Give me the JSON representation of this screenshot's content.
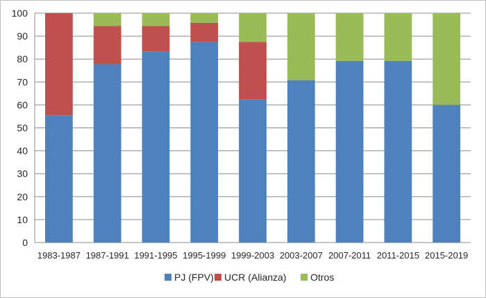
{
  "chart_data": {
    "type": "bar",
    "stacked": true,
    "categories": [
      "1983-1987",
      "1987-1991",
      "1991-1995",
      "1995-1999",
      "1999-2003",
      "2003-2007",
      "2007-2011",
      "2011-2015",
      "2015-2019"
    ],
    "series": [
      {
        "name": "PJ (FPV)",
        "color": "#4f81bd",
        "values": [
          55.5,
          77.8,
          83.3,
          87.5,
          62.5,
          70.8,
          79.2,
          79.2,
          60.0
        ]
      },
      {
        "name": "UCR (Alianza)",
        "color": "#c0504d",
        "values": [
          44.5,
          16.6,
          11.1,
          8.3,
          25.0,
          0,
          0,
          0,
          0
        ]
      },
      {
        "name": "Otros",
        "color": "#9bbb59",
        "values": [
          0,
          5.6,
          5.6,
          4.2,
          12.5,
          29.2,
          20.8,
          20.8,
          40.0
        ]
      }
    ],
    "ylim": [
      0,
      100
    ],
    "yticks": [
      0,
      10,
      20,
      30,
      40,
      50,
      60,
      70,
      80,
      90,
      100
    ],
    "grid": true,
    "legend_position": "bottom",
    "title": "",
    "xlabel": "",
    "ylabel": ""
  }
}
